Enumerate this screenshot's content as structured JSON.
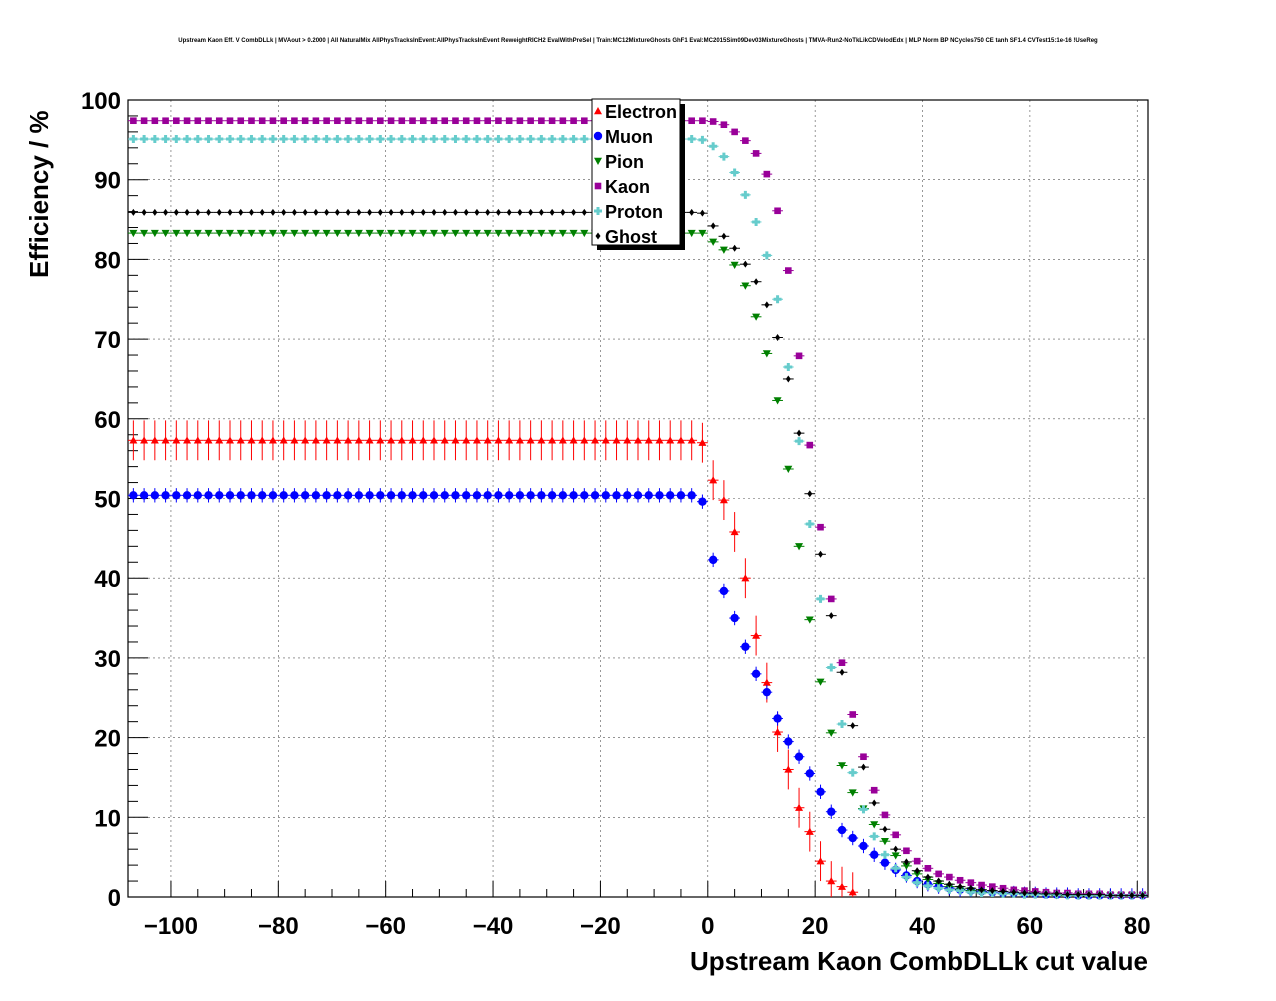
{
  "chart_data": {
    "type": "scatter",
    "title": "Upstream Kaon Eff. V CombDLLk | MVAout > 0.2000 | All NaturalMix AllPhysTracksInEvent:AllPhysTracksInEvent ReweightRICH2 EvalWithPreSel | Train:MC12MixtureGhosts GhF1 Eval:MC2015Sim09Dev03MixtureGhosts | TMVA-Run2-NoTkLikCDVelodEdx | MLP Norm BP NCycles750 CE tanh SF1.4 CVTest15:1e-16 !UseReg",
    "xlabel": "Upstream Kaon CombDLLk cut value",
    "ylabel": "Efficiency / %",
    "xlim": [
      -108,
      82
    ],
    "ylim": [
      0,
      100
    ],
    "xticks": [
      -100,
      -80,
      -60,
      -40,
      -20,
      0,
      20,
      40,
      60,
      80
    ],
    "xtick_labels": [
      "−100",
      "−80",
      "−60",
      "−40",
      "−20",
      "0",
      "20",
      "40",
      "60",
      "80"
    ],
    "yticks": [
      0,
      10,
      20,
      30,
      40,
      50,
      60,
      70,
      80,
      90,
      100
    ],
    "ytick_labels": [
      "0",
      "10",
      "20",
      "30",
      "40",
      "50",
      "60",
      "70",
      "80",
      "90",
      "100"
    ],
    "grid": true,
    "legend_position": "top-center",
    "x": [
      -107,
      -105,
      -103,
      -101,
      -99,
      -97,
      -95,
      -93,
      -91,
      -89,
      -87,
      -85,
      -83,
      -81,
      -79,
      -77,
      -75,
      -73,
      -71,
      -69,
      -67,
      -65,
      -63,
      -61,
      -59,
      -57,
      -55,
      -53,
      -51,
      -49,
      -47,
      -45,
      -43,
      -41,
      -39,
      -37,
      -35,
      -33,
      -31,
      -29,
      -27,
      -25,
      -23,
      -21,
      -19,
      -17,
      -15,
      -13,
      -11,
      -9,
      -7,
      -5,
      -3,
      -1,
      1,
      3,
      5,
      7,
      9,
      11,
      13,
      15,
      17,
      19,
      21,
      23,
      25,
      27,
      29,
      31,
      33,
      35,
      37,
      39,
      41,
      43,
      45,
      47,
      49,
      51,
      53,
      55,
      57,
      59,
      61,
      63,
      65,
      67,
      69,
      71,
      73,
      75,
      77,
      79,
      81
    ],
    "series": [
      {
        "name": "Electron",
        "color": "#ff0000",
        "marker": "triangle-up",
        "error": 2.5,
        "values": [
          57.3,
          57.3,
          57.3,
          57.3,
          57.3,
          57.3,
          57.3,
          57.3,
          57.3,
          57.3,
          57.3,
          57.3,
          57.3,
          57.3,
          57.3,
          57.3,
          57.3,
          57.3,
          57.3,
          57.3,
          57.3,
          57.3,
          57.3,
          57.3,
          57.3,
          57.3,
          57.3,
          57.3,
          57.3,
          57.3,
          57.3,
          57.3,
          57.3,
          57.3,
          57.3,
          57.3,
          57.3,
          57.3,
          57.3,
          57.3,
          57.3,
          57.3,
          57.3,
          57.3,
          57.3,
          57.3,
          57.3,
          57.3,
          57.3,
          57.3,
          57.3,
          57.3,
          57.3,
          57.0,
          52.3,
          49.8,
          45.8,
          40.0,
          32.8,
          26.9,
          20.7,
          16.0,
          11.2,
          8.2,
          4.5,
          2.0,
          1.3,
          0.6
        ]
      },
      {
        "name": "Muon",
        "color": "#0000ff",
        "marker": "circle",
        "error": 0.9,
        "values": [
          50.4,
          50.4,
          50.4,
          50.4,
          50.4,
          50.4,
          50.4,
          50.4,
          50.4,
          50.4,
          50.4,
          50.4,
          50.4,
          50.4,
          50.4,
          50.4,
          50.4,
          50.4,
          50.4,
          50.4,
          50.4,
          50.4,
          50.4,
          50.4,
          50.4,
          50.4,
          50.4,
          50.4,
          50.4,
          50.4,
          50.4,
          50.4,
          50.4,
          50.4,
          50.4,
          50.4,
          50.4,
          50.4,
          50.4,
          50.4,
          50.4,
          50.4,
          50.4,
          50.4,
          50.4,
          50.4,
          50.4,
          50.4,
          50.4,
          50.4,
          50.4,
          50.4,
          50.4,
          49.6,
          42.3,
          38.4,
          35.0,
          31.4,
          28.0,
          25.7,
          22.4,
          19.5,
          17.6,
          15.5,
          13.2,
          10.7,
          8.4,
          7.4,
          6.4,
          5.3,
          4.3,
          3.4,
          2.7,
          2.0,
          1.6,
          1.3,
          1.1,
          0.9,
          0.8,
          0.7,
          0.6,
          0.5,
          0.5,
          0.4,
          0.4,
          0.3,
          0.3,
          0.3,
          0.2,
          0.2,
          0.2,
          0.2,
          0.2,
          0.2,
          0.2
        ]
      },
      {
        "name": "Pion",
        "color": "#008000",
        "marker": "triangle-down",
        "error": 0.3,
        "values": [
          83.3,
          83.3,
          83.3,
          83.3,
          83.3,
          83.3,
          83.3,
          83.3,
          83.3,
          83.3,
          83.3,
          83.3,
          83.3,
          83.3,
          83.3,
          83.3,
          83.3,
          83.3,
          83.3,
          83.3,
          83.3,
          83.3,
          83.3,
          83.3,
          83.3,
          83.3,
          83.3,
          83.3,
          83.3,
          83.3,
          83.3,
          83.3,
          83.3,
          83.3,
          83.3,
          83.3,
          83.3,
          83.3,
          83.3,
          83.3,
          83.3,
          83.3,
          83.3,
          83.3,
          83.3,
          83.3,
          83.3,
          83.3,
          83.3,
          83.3,
          83.3,
          83.3,
          83.3,
          83.3,
          82.2,
          81.2,
          79.3,
          76.7,
          72.8,
          68.2,
          62.3,
          53.7,
          44.0,
          34.8,
          27.0,
          20.6,
          16.5,
          13.1,
          11.1,
          9.1,
          7.0,
          5.2,
          3.9,
          2.9,
          2.2,
          1.7,
          1.3,
          1.0,
          0.8,
          0.6,
          0.5,
          0.4,
          0.4,
          0.3,
          0.3,
          0.3,
          0.2,
          0.2,
          0.2,
          0.2,
          0.2,
          0.2,
          0.2,
          0.2,
          0.2
        ]
      },
      {
        "name": "Kaon",
        "color": "#990099",
        "marker": "square",
        "error": 0.2,
        "values": [
          97.4,
          97.4,
          97.4,
          97.4,
          97.4,
          97.4,
          97.4,
          97.4,
          97.4,
          97.4,
          97.4,
          97.4,
          97.4,
          97.4,
          97.4,
          97.4,
          97.4,
          97.4,
          97.4,
          97.4,
          97.4,
          97.4,
          97.4,
          97.4,
          97.4,
          97.4,
          97.4,
          97.4,
          97.4,
          97.4,
          97.4,
          97.4,
          97.4,
          97.4,
          97.4,
          97.4,
          97.4,
          97.4,
          97.4,
          97.4,
          97.4,
          97.4,
          97.4,
          97.4,
          97.4,
          97.4,
          97.4,
          97.4,
          97.4,
          97.4,
          97.4,
          97.4,
          97.4,
          97.4,
          97.3,
          96.9,
          96.0,
          94.9,
          93.3,
          90.7,
          86.1,
          78.6,
          67.9,
          56.7,
          46.4,
          37.4,
          29.4,
          22.9,
          17.6,
          13.4,
          10.3,
          7.8,
          5.8,
          4.5,
          3.6,
          2.9,
          2.5,
          2.1,
          1.8,
          1.5,
          1.3,
          1.1,
          0.9,
          0.8,
          0.7,
          0.6,
          0.5,
          0.5,
          0.4,
          0.4,
          0.4,
          0.3,
          0.3,
          0.3,
          0.3
        ]
      },
      {
        "name": "Proton",
        "color": "#66cccc",
        "marker": "cross",
        "error": 0.3,
        "values": [
          95.1,
          95.1,
          95.1,
          95.1,
          95.1,
          95.1,
          95.1,
          95.1,
          95.1,
          95.1,
          95.1,
          95.1,
          95.1,
          95.1,
          95.1,
          95.1,
          95.1,
          95.1,
          95.1,
          95.1,
          95.1,
          95.1,
          95.1,
          95.1,
          95.1,
          95.1,
          95.1,
          95.1,
          95.1,
          95.1,
          95.1,
          95.1,
          95.1,
          95.1,
          95.1,
          95.1,
          95.1,
          95.1,
          95.1,
          95.1,
          95.1,
          95.1,
          95.1,
          95.1,
          95.1,
          95.1,
          95.1,
          95.1,
          95.1,
          95.1,
          95.1,
          95.1,
          95.1,
          95.0,
          94.2,
          92.9,
          90.9,
          88.1,
          84.7,
          80.5,
          75.0,
          66.5,
          57.2,
          46.8,
          37.4,
          28.8,
          21.7,
          15.6,
          11.0,
          7.6,
          5.3,
          3.6,
          2.5,
          1.8,
          1.4,
          1.1,
          0.9,
          0.8,
          0.6,
          0.5,
          0.5,
          0.4,
          0.4,
          0.3,
          0.3,
          0.3,
          0.3,
          0.2,
          0.2,
          0.2,
          0.2,
          0.2,
          0.2,
          0.2,
          0.2
        ]
      },
      {
        "name": "Ghost",
        "color": "#000000",
        "marker": "diamond",
        "error": 0.3,
        "values": [
          85.9,
          85.9,
          85.9,
          85.9,
          85.9,
          85.9,
          85.9,
          85.9,
          85.9,
          85.9,
          85.9,
          85.9,
          85.9,
          85.9,
          85.9,
          85.9,
          85.9,
          85.9,
          85.9,
          85.9,
          85.9,
          85.9,
          85.9,
          85.9,
          85.9,
          85.9,
          85.9,
          85.9,
          85.9,
          85.9,
          85.9,
          85.9,
          85.9,
          85.9,
          85.9,
          85.9,
          85.9,
          85.9,
          85.9,
          85.9,
          85.9,
          85.9,
          85.9,
          85.9,
          85.9,
          85.9,
          85.9,
          85.9,
          85.9,
          85.9,
          85.9,
          85.9,
          85.9,
          85.8,
          84.2,
          82.9,
          81.4,
          79.4,
          77.2,
          74.3,
          70.2,
          65.0,
          58.2,
          50.6,
          43.0,
          35.3,
          28.2,
          21.5,
          16.3,
          11.8,
          8.5,
          6.0,
          4.4,
          3.3,
          2.5,
          2.0,
          1.6,
          1.3,
          1.1,
          0.9,
          0.8,
          0.7,
          0.6,
          0.5,
          0.5,
          0.4,
          0.4,
          0.3,
          0.3,
          0.3,
          0.3,
          0.2,
          0.2,
          0.2,
          0.2
        ]
      }
    ]
  }
}
